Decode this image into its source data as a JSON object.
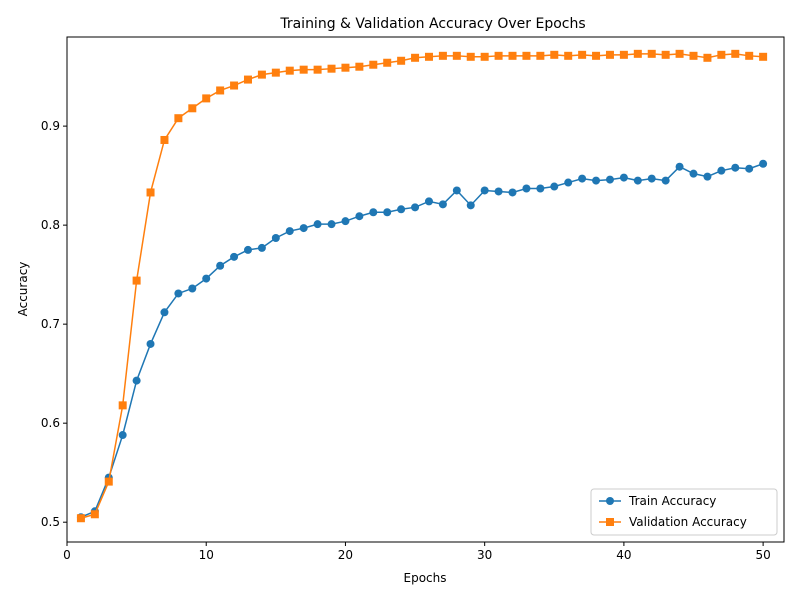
{
  "chart_data": {
    "type": "line",
    "title": "Training & Validation Accuracy Over Epochs",
    "xlabel": "Epochs",
    "ylabel": "Accuracy",
    "xlim": [
      0,
      51.5
    ],
    "ylim": [
      0.48,
      0.99
    ],
    "xticks": [
      0,
      10,
      20,
      30,
      40,
      50
    ],
    "yticks": [
      0.5,
      0.6,
      0.7,
      0.8,
      0.9
    ],
    "grid": false,
    "legend_position": "lower-right",
    "x": [
      1,
      2,
      3,
      4,
      5,
      6,
      7,
      8,
      9,
      10,
      11,
      12,
      13,
      14,
      15,
      16,
      17,
      18,
      19,
      20,
      21,
      22,
      23,
      24,
      25,
      26,
      27,
      28,
      29,
      30,
      31,
      32,
      33,
      34,
      35,
      36,
      37,
      38,
      39,
      40,
      41,
      42,
      43,
      44,
      45,
      46,
      47,
      48,
      49,
      50
    ],
    "series": [
      {
        "name": "Train Accuracy",
        "color": "#1f77b4",
        "marker": "circle",
        "values": [
          0.505,
          0.511,
          0.545,
          0.588,
          0.643,
          0.68,
          0.712,
          0.731,
          0.736,
          0.746,
          0.759,
          0.768,
          0.775,
          0.777,
          0.787,
          0.794,
          0.797,
          0.801,
          0.801,
          0.804,
          0.809,
          0.813,
          0.813,
          0.816,
          0.818,
          0.824,
          0.821,
          0.835,
          0.82,
          0.835,
          0.834,
          0.833,
          0.837,
          0.837,
          0.839,
          0.843,
          0.847,
          0.845,
          0.846,
          0.848,
          0.845,
          0.847,
          0.845,
          0.859,
          0.852,
          0.849,
          0.855,
          0.858,
          0.857,
          0.862
        ]
      },
      {
        "name": "Validation Accuracy",
        "color": "#ff7f0e",
        "marker": "square",
        "values": [
          0.504,
          0.508,
          0.541,
          0.618,
          0.744,
          0.833,
          0.886,
          0.908,
          0.918,
          0.928,
          0.936,
          0.941,
          0.947,
          0.952,
          0.954,
          0.956,
          0.957,
          0.957,
          0.958,
          0.959,
          0.96,
          0.962,
          0.964,
          0.966,
          0.969,
          0.97,
          0.971,
          0.971,
          0.97,
          0.97,
          0.971,
          0.971,
          0.971,
          0.971,
          0.972,
          0.971,
          0.972,
          0.971,
          0.972,
          0.972,
          0.973,
          0.973,
          0.972,
          0.973,
          0.971,
          0.969,
          0.972,
          0.973,
          0.971,
          0.97
        ]
      }
    ]
  }
}
